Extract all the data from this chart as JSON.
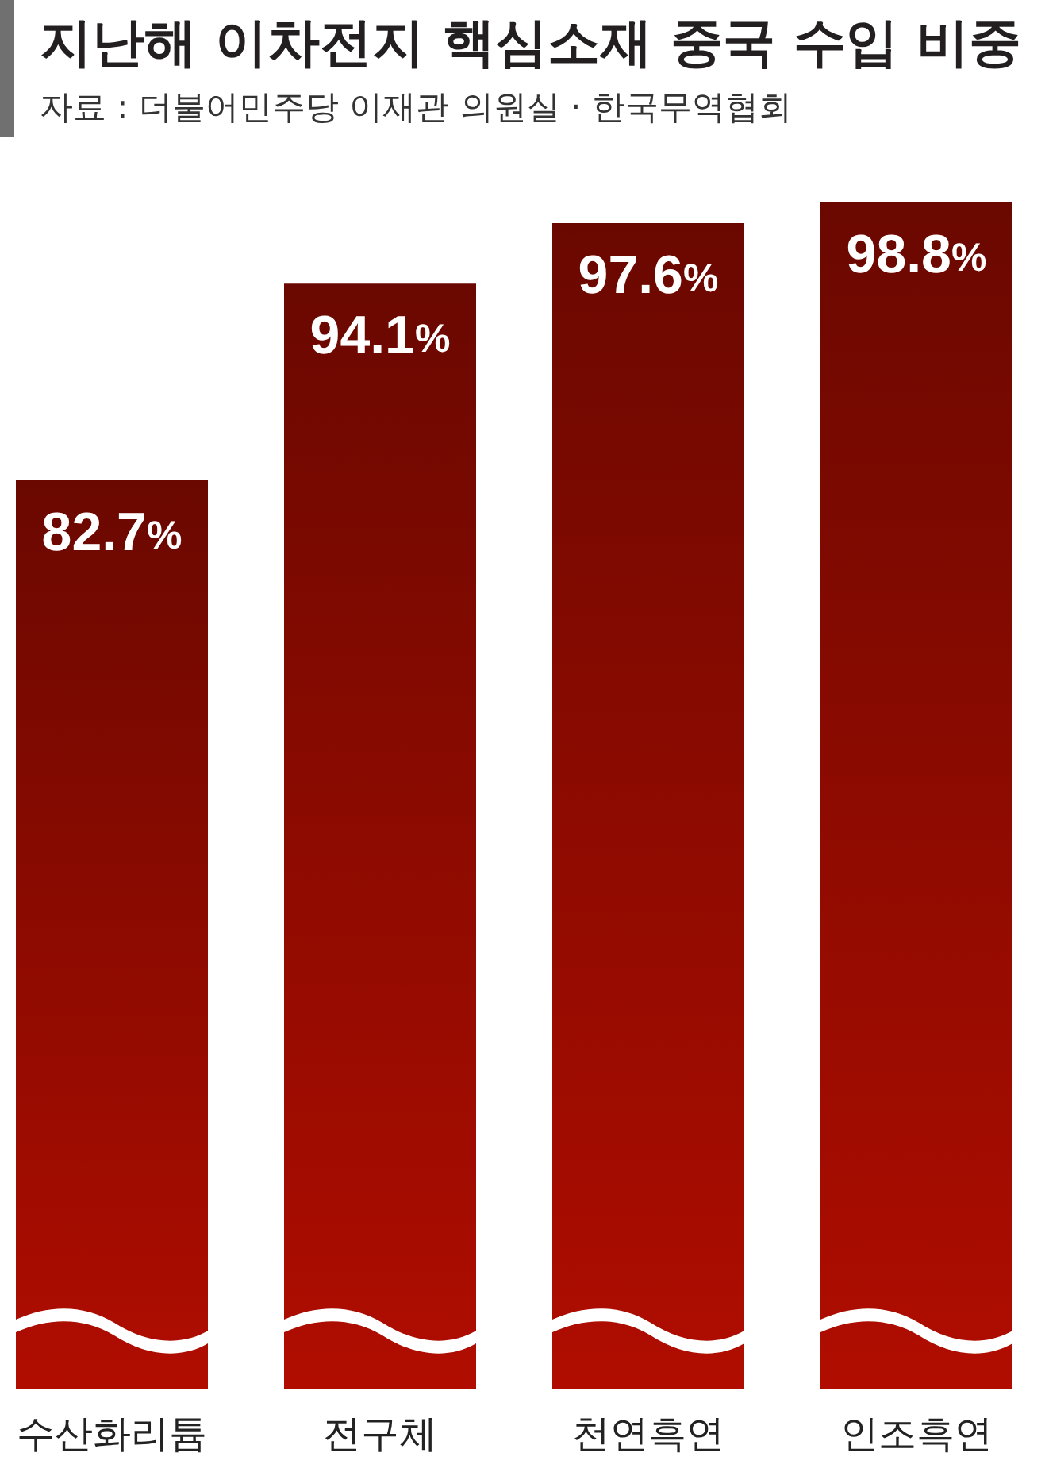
{
  "chart_data": {
    "type": "bar",
    "title": "지난해 이차전지 핵심소재 중국 수입 비중",
    "subtitle": "자료 : 더불어민주당 이재관 의원실 · 한국무역협회",
    "categories": [
      "수산화리튬",
      "전구체",
      "천연흑연",
      "인조흑연"
    ],
    "values": [
      82.7,
      94.1,
      97.6,
      98.8
    ],
    "value_labels": [
      "82.7%",
      "94.1%",
      "97.6%",
      "98.8%"
    ],
    "color": "#8d0a00",
    "ylim": [
      30,
      98.8
    ],
    "tick_labels": "x"
  }
}
